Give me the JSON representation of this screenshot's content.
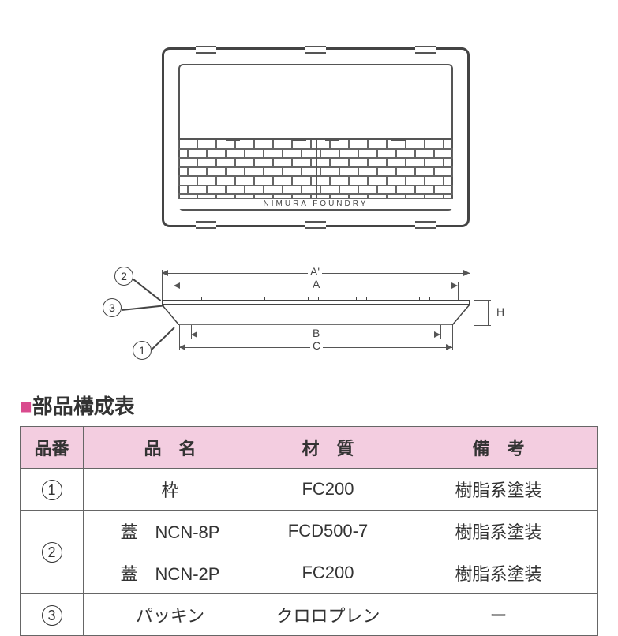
{
  "diagram": {
    "product_text": "NIMURA  FOUNDRY",
    "callouts": [
      "2",
      "3",
      "1"
    ],
    "dim_labels": {
      "A_prime": "A'",
      "A": "A",
      "B": "B",
      "C": "C",
      "H": "H"
    }
  },
  "section_title": "部品構成表",
  "table": {
    "headers": [
      "品番",
      "品　名",
      "材　質",
      "備　考"
    ],
    "rows": [
      {
        "num": "1",
        "name": "枠",
        "material": "FC200",
        "note": "樹脂系塗装",
        "rowspan_num": 1
      },
      {
        "num": "2",
        "name": "蓋　NCN-8P",
        "material": "FCD500-7",
        "note": "樹脂系塗装",
        "rowspan_num": 2
      },
      {
        "num": "",
        "name": "蓋　NCN-2P",
        "material": "FC200",
        "note": "樹脂系塗装",
        "rowspan_num": 0
      },
      {
        "num": "3",
        "name": "パッキン",
        "material": "クロロプレン",
        "note": "ー",
        "rowspan_num": 1
      }
    ],
    "colors": {
      "header_bg": "#f3cde0",
      "border": "#666666",
      "accent": "#d94b8e"
    }
  }
}
